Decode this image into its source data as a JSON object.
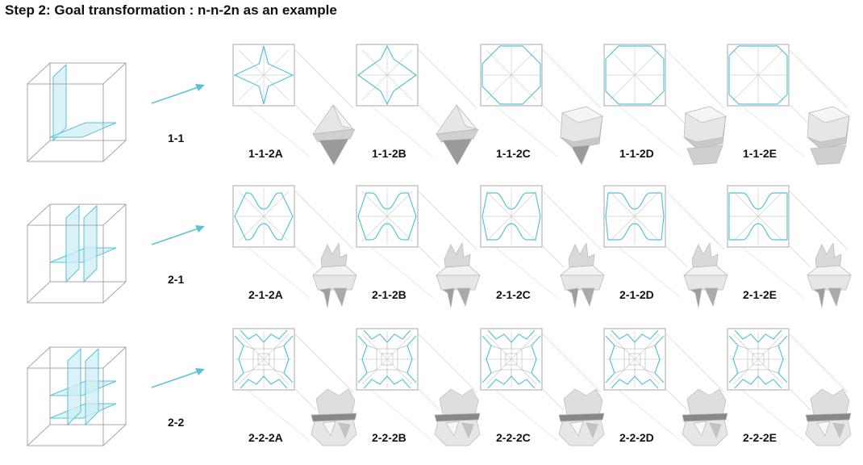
{
  "title": "Step 2: Goal transformation : n-n-2n as an example",
  "colors": {
    "accent": "#58c3d6",
    "plane_fill": "#cfeef5",
    "frame": "#a7a7a7",
    "shape": "#e6e6e6"
  },
  "rows": [
    {
      "label": "1-1",
      "cube_icon": "cube-two-planes-icon",
      "variants": [
        {
          "label": "1-1-2A",
          "pattern_icon": "star-crease-pattern-icon",
          "shape_icon": "folded-shape-icon"
        },
        {
          "label": "1-1-2B",
          "pattern_icon": "star-crease-pattern-icon",
          "shape_icon": "folded-shape-icon"
        },
        {
          "label": "1-1-2C",
          "pattern_icon": "octagon-crease-pattern-icon",
          "shape_icon": "folded-shape-icon"
        },
        {
          "label": "1-1-2D",
          "pattern_icon": "octagon-crease-pattern-icon",
          "shape_icon": "folded-shape-icon"
        },
        {
          "label": "1-1-2E",
          "pattern_icon": "octagon-crease-pattern-icon",
          "shape_icon": "folded-shape-icon"
        }
      ]
    },
    {
      "label": "2-1",
      "cube_icon": "cube-three-planes-icon",
      "variants": [
        {
          "label": "2-1-2A",
          "pattern_icon": "wave-crease-pattern-icon",
          "shape_icon": "folded-shape-icon"
        },
        {
          "label": "2-1-2B",
          "pattern_icon": "wave-crease-pattern-icon",
          "shape_icon": "folded-shape-icon"
        },
        {
          "label": "2-1-2C",
          "pattern_icon": "wave-crease-pattern-icon",
          "shape_icon": "folded-shape-icon"
        },
        {
          "label": "2-1-2D",
          "pattern_icon": "wave-crease-pattern-icon",
          "shape_icon": "folded-shape-icon"
        },
        {
          "label": "2-1-2E",
          "pattern_icon": "wave-crease-pattern-icon",
          "shape_icon": "folded-shape-icon"
        }
      ]
    },
    {
      "label": "2-2",
      "cube_icon": "cube-four-planes-icon",
      "variants": [
        {
          "label": "2-2-2A",
          "pattern_icon": "grid-crease-pattern-icon",
          "shape_icon": "folded-shape-icon"
        },
        {
          "label": "2-2-2B",
          "pattern_icon": "grid-crease-pattern-icon",
          "shape_icon": "folded-shape-icon"
        },
        {
          "label": "2-2-2C",
          "pattern_icon": "grid-crease-pattern-icon",
          "shape_icon": "folded-shape-icon"
        },
        {
          "label": "2-2-2D",
          "pattern_icon": "grid-crease-pattern-icon",
          "shape_icon": "folded-shape-icon"
        },
        {
          "label": "2-2-2E",
          "pattern_icon": "grid-crease-pattern-icon",
          "shape_icon": "folded-shape-icon"
        }
      ]
    }
  ]
}
